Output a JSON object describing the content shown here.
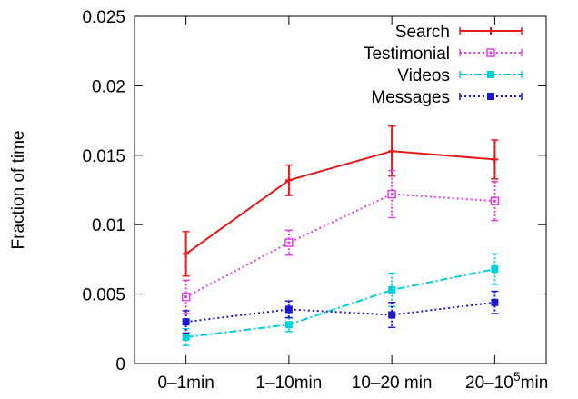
{
  "chart_data": {
    "type": "line",
    "title": "",
    "xlabel": "",
    "ylabel": "Fraction of time",
    "categories": [
      "0–1min",
      "1–10min",
      "10–20 min",
      "20–10^5min"
    ],
    "category_parts": [
      {
        "base": "0–1min",
        "sup": "",
        "tail": ""
      },
      {
        "base": "1–10min",
        "sup": "",
        "tail": ""
      },
      {
        "base": "10–20 min",
        "sup": "",
        "tail": ""
      },
      {
        "base": "20–10",
        "sup": "5",
        "tail": "min"
      }
    ],
    "ylim": [
      0,
      0.025
    ],
    "yticks": [
      0,
      0.005,
      0.01,
      0.015,
      0.02,
      0.025
    ],
    "ytick_labels": [
      "0",
      "0.005",
      "0.01",
      "0.015",
      "0.02",
      "0.025"
    ],
    "grid": false,
    "legend_position": "top-right",
    "series": [
      {
        "name": "Search",
        "color": "#e41a1c",
        "line_style": "solid",
        "marker": "plus",
        "values": [
          0.0079,
          0.0132,
          0.0153,
          0.0147
        ],
        "error": [
          0.0016,
          0.0011,
          0.0018,
          0.0014
        ]
      },
      {
        "name": "Testimonial",
        "color": "#e040e0",
        "line_style": "dotted",
        "marker": "open-square",
        "values": [
          0.0048,
          0.0087,
          0.0122,
          0.0117
        ],
        "error": [
          0.0012,
          0.0009,
          0.0017,
          0.0014
        ]
      },
      {
        "name": "Videos",
        "color": "#00d0d8",
        "line_style": "dashdot",
        "marker": "filled-square",
        "values": [
          0.0019,
          0.0028,
          0.0053,
          0.0068
        ],
        "error": [
          0.0006,
          0.0005,
          0.0012,
          0.0011
        ]
      },
      {
        "name": "Messages",
        "color": "#1a1acc",
        "line_style": "dotted",
        "marker": "filled-square",
        "values": [
          0.003,
          0.0039,
          0.0035,
          0.0044
        ],
        "error": [
          0.0008,
          0.0006,
          0.0009,
          0.0008
        ]
      }
    ]
  }
}
